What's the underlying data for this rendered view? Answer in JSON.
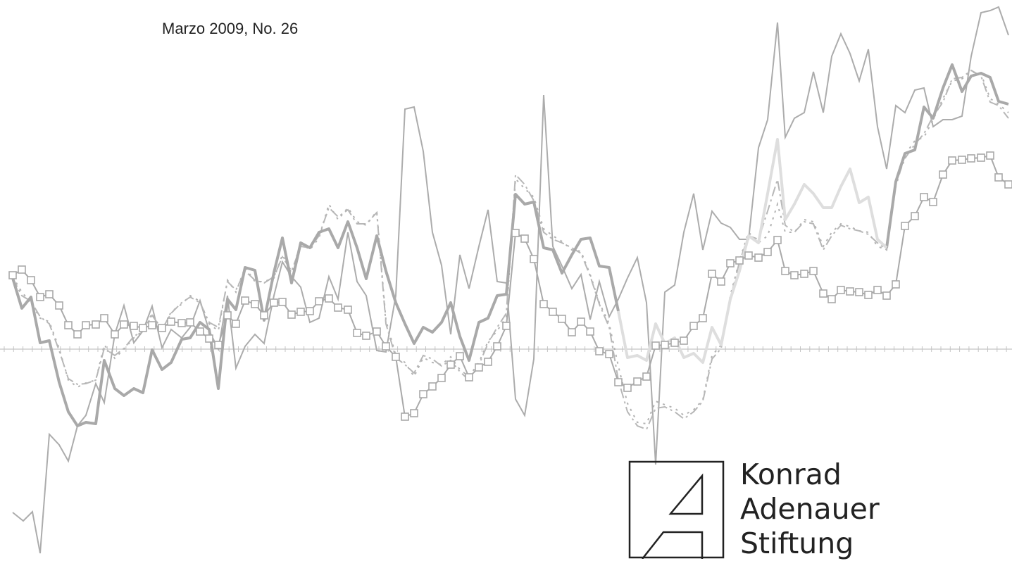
{
  "publication": {
    "issue_line": "Marzo 2009, No. 26"
  },
  "foundation": {
    "logo_name": "adenauer-a-logo",
    "name_lines": [
      "Konrad",
      "Adenauer",
      "Stiftung"
    ]
  },
  "palette": {
    "line_mid": "#a9a9a9",
    "line_light": "#dedede",
    "text_dark": "#222222",
    "baseline": "#c4c4c4"
  }
}
